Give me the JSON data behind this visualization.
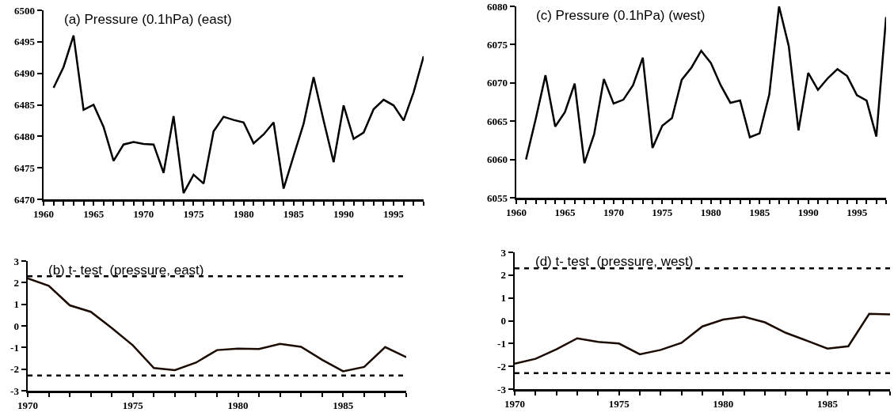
{
  "chart_data": [
    {
      "type": "line",
      "title": "(a) Pressure (0.1hPa) (east)",
      "marker": "none",
      "line_style": "solid",
      "grid": false,
      "x": [
        1961,
        1962,
        1963,
        1964,
        1965,
        1966,
        1967,
        1968,
        1969,
        1970,
        1971,
        1972,
        1973,
        1974,
        1975,
        1976,
        1977,
        1978,
        1979,
        1980,
        1981,
        1982,
        1983,
        1984,
        1985,
        1986,
        1987,
        1988,
        1989,
        1990,
        1991,
        1992,
        1993,
        1994,
        1995,
        1996,
        1997,
        1998
      ],
      "series": [
        {
          "color": "#000000",
          "values": [
            6487.7,
            6491,
            6496,
            6484.2,
            6485,
            6481.5,
            6476.1,
            6478.7,
            6479.1,
            6478.8,
            6478.7,
            6474.2,
            6483.2,
            6471,
            6473.9,
            6472.5,
            6480.8,
            6483.1,
            6482.6,
            6482.2,
            6478.9,
            6480.3,
            6482.2,
            6471.7,
            6476.9,
            6482,
            6489.4,
            6482.5,
            6475.9,
            6484.9,
            6479.6,
            6480.6,
            6484.3,
            6485.8,
            6484.9,
            6482.5,
            6487,
            6492.7
          ]
        }
      ],
      "xlim": [
        1960,
        1998
      ],
      "xticks": [
        1960,
        {
          "value": 1961,
          "label": null
        },
        {
          "value": 1962,
          "label": null
        },
        {
          "value": 1963,
          "label": null
        },
        {
          "value": 1964,
          "label": null
        },
        1965,
        {
          "value": 1966,
          "label": null
        },
        {
          "value": 1967,
          "label": null
        },
        {
          "value": 1968,
          "label": null
        },
        {
          "value": 1969,
          "label": null
        },
        1970,
        {
          "value": 1971,
          "label": null
        },
        {
          "value": 1972,
          "label": null
        },
        {
          "value": 1973,
          "label": null
        },
        {
          "value": 1974,
          "label": null
        },
        1975,
        {
          "value": 1976,
          "label": null
        },
        {
          "value": 1977,
          "label": null
        },
        {
          "value": 1978,
          "label": null
        },
        {
          "value": 1979,
          "label": null
        },
        1980,
        {
          "value": 1981,
          "label": null
        },
        {
          "value": 1982,
          "label": null
        },
        {
          "value": 1983,
          "label": null
        },
        {
          "value": 1984,
          "label": null
        },
        1985,
        {
          "value": 1986,
          "label": null
        },
        {
          "value": 1987,
          "label": null
        },
        {
          "value": 1988,
          "label": null
        },
        {
          "value": 1989,
          "label": null
        },
        1990,
        {
          "value": 1991,
          "label": null
        },
        {
          "value": 1992,
          "label": null
        },
        {
          "value": 1993,
          "label": null
        },
        {
          "value": 1994,
          "label": null
        },
        1995,
        {
          "value": 1996,
          "label": null
        },
        {
          "value": 1997,
          "label": null
        },
        {
          "value": 1998,
          "label": null
        }
      ],
      "ylim": [
        6470,
        6500
      ],
      "yticks": [
        6470,
        6475,
        6480,
        6485,
        6490,
        6495,
        6500
      ]
    },
    {
      "type": "line",
      "title": "(c) Pressure (0.1hPa) (west)",
      "marker": "none",
      "line_style": "solid",
      "grid": false,
      "x": [
        1961,
        1962,
        1963,
        1964,
        1965,
        1966,
        1967,
        1968,
        1969,
        1970,
        1971,
        1972,
        1973,
        1974,
        1975,
        1976,
        1977,
        1978,
        1979,
        1980,
        1981,
        1982,
        1983,
        1984,
        1985,
        1986,
        1987,
        1988,
        1989,
        1990,
        1991,
        1992,
        1993,
        1994,
        1995,
        1996,
        1997,
        1998
      ],
      "series": [
        {
          "color": "#000000",
          "values": [
            6060,
            6065.3,
            6071,
            6064.3,
            6066.2,
            6069.9,
            6059.5,
            6063.3,
            6070.5,
            6067.3,
            6067.8,
            6069.7,
            6073.3,
            6061.5,
            6064.4,
            6065.4,
            6070.4,
            6072,
            6074.2,
            6072.6,
            6069.7,
            6067.4,
            6067.7,
            6062.9,
            6063.4,
            6068.5,
            6080,
            6074.8,
            6063.8,
            6071.3,
            6069.1,
            6070.6,
            6071.8,
            6070.9,
            6068.4,
            6067.7,
            6063,
            6078.6
          ]
        }
      ],
      "xlim": [
        1960,
        1998
      ],
      "xticks": [
        1960,
        {
          "value": 1961,
          "label": null
        },
        {
          "value": 1962,
          "label": null
        },
        {
          "value": 1963,
          "label": null
        },
        {
          "value": 1964,
          "label": null
        },
        1965,
        {
          "value": 1966,
          "label": null
        },
        {
          "value": 1967,
          "label": null
        },
        {
          "value": 1968,
          "label": null
        },
        {
          "value": 1969,
          "label": null
        },
        1970,
        {
          "value": 1971,
          "label": null
        },
        {
          "value": 1972,
          "label": null
        },
        {
          "value": 1973,
          "label": null
        },
        {
          "value": 1974,
          "label": null
        },
        1975,
        {
          "value": 1976,
          "label": null
        },
        {
          "value": 1977,
          "label": null
        },
        {
          "value": 1978,
          "label": null
        },
        {
          "value": 1979,
          "label": null
        },
        1980,
        {
          "value": 1981,
          "label": null
        },
        {
          "value": 1982,
          "label": null
        },
        {
          "value": 1983,
          "label": null
        },
        {
          "value": 1984,
          "label": null
        },
        1985,
        {
          "value": 1986,
          "label": null
        },
        {
          "value": 1987,
          "label": null
        },
        {
          "value": 1988,
          "label": null
        },
        {
          "value": 1989,
          "label": null
        },
        1990,
        {
          "value": 1991,
          "label": null
        },
        {
          "value": 1992,
          "label": null
        },
        {
          "value": 1993,
          "label": null
        },
        {
          "value": 1994,
          "label": null
        },
        1995,
        {
          "value": 1996,
          "label": null
        },
        {
          "value": 1997,
          "label": null
        },
        {
          "value": 1998,
          "label": null
        }
      ],
      "ylim": [
        6055,
        6080
      ],
      "yticks": [
        6055,
        6060,
        6065,
        6070,
        6075,
        6080
      ]
    },
    {
      "type": "line",
      "title": "(b) t- test  (pressure, east)",
      "marker": "none",
      "line_style": "solid",
      "grid": false,
      "x": [
        1970,
        1971,
        1972,
        1973,
        1974,
        1975,
        1976,
        1977,
        1978,
        1979,
        1980,
        1981,
        1982,
        1983,
        1984,
        1985,
        1986,
        1987,
        1988
      ],
      "series": [
        {
          "color": "#1a0a00",
          "values": [
            2.2,
            1.85,
            0.95,
            0.65,
            -0.1,
            -0.9,
            -1.95,
            -2.05,
            -1.7,
            -1.12,
            -1.05,
            -1.07,
            -0.83,
            -0.97,
            -1.57,
            -2.1,
            -1.9,
            -0.98,
            -1.45
          ]
        }
      ],
      "xlim": [
        1970,
        1988
      ],
      "xticks": [
        1970,
        {
          "value": 1971,
          "label": null
        },
        {
          "value": 1972,
          "label": null
        },
        {
          "value": 1973,
          "label": null
        },
        {
          "value": 1974,
          "label": null
        },
        1975,
        {
          "value": 1976,
          "label": null
        },
        {
          "value": 1977,
          "label": null
        },
        {
          "value": 1978,
          "label": null
        },
        {
          "value": 1979,
          "label": null
        },
        1980,
        {
          "value": 1981,
          "label": null
        },
        {
          "value": 1982,
          "label": null
        },
        {
          "value": 1983,
          "label": null
        },
        {
          "value": 1984,
          "label": null
        },
        1985,
        {
          "value": 1986,
          "label": null
        },
        {
          "value": 1987,
          "label": null
        },
        {
          "value": 1988,
          "label": null
        }
      ],
      "ylim": [
        -3,
        3
      ],
      "yticks": [
        -3,
        -2,
        -1,
        0,
        1,
        2,
        3
      ],
      "ref_lines": [
        {
          "axis": "y",
          "value": 2.3,
          "color": "#000000",
          "line_style": "dashed"
        },
        {
          "axis": "y",
          "value": -2.3,
          "color": "#000000",
          "line_style": "dashed"
        }
      ]
    },
    {
      "type": "line",
      "title": "(d) t- test  (pressure, west)",
      "marker": "none",
      "line_style": "solid",
      "grid": false,
      "x": [
        1970,
        1971,
        1972,
        1973,
        1974,
        1975,
        1976,
        1977,
        1978,
        1979,
        1980,
        1981,
        1982,
        1983,
        1984,
        1985,
        1986,
        1987,
        1988
      ],
      "series": [
        {
          "color": "#1a0a00",
          "values": [
            -1.88,
            -1.67,
            -1.25,
            -0.77,
            -0.93,
            -1.0,
            -1.47,
            -1.28,
            -0.97,
            -0.25,
            0.05,
            0.17,
            -0.07,
            -0.53,
            -0.87,
            -1.22,
            -1.12,
            0.3,
            0.28
          ]
        }
      ],
      "xlim": [
        1970,
        1988
      ],
      "xticks": [
        1970,
        {
          "value": 1971,
          "label": null
        },
        {
          "value": 1972,
          "label": null
        },
        {
          "value": 1973,
          "label": null
        },
        {
          "value": 1974,
          "label": null
        },
        1975,
        {
          "value": 1976,
          "label": null
        },
        {
          "value": 1977,
          "label": null
        },
        {
          "value": 1978,
          "label": null
        },
        {
          "value": 1979,
          "label": null
        },
        1980,
        {
          "value": 1981,
          "label": null
        },
        {
          "value": 1982,
          "label": null
        },
        {
          "value": 1983,
          "label": null
        },
        {
          "value": 1984,
          "label": null
        },
        1985,
        {
          "value": 1986,
          "label": null
        },
        {
          "value": 1987,
          "label": null
        },
        {
          "value": 1988,
          "label": null
        }
      ],
      "ylim": [
        -3,
        3
      ],
      "yticks": [
        -3,
        -2,
        -1,
        0,
        1,
        2,
        3
      ],
      "ref_lines": [
        {
          "axis": "y",
          "value": 2.3,
          "color": "#000000",
          "line_style": "dashed"
        },
        {
          "axis": "y",
          "value": -2.3,
          "color": "#000000",
          "line_style": "dashed"
        }
      ]
    }
  ]
}
